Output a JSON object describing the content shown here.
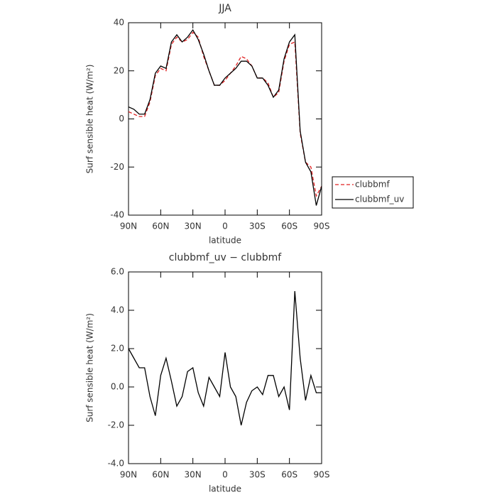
{
  "chart_data": [
    {
      "type": "line",
      "title": "JJA",
      "xlabel": "latitude",
      "ylabel": "Surf sensible heat (W/m²)",
      "x": [
        90,
        85,
        80,
        75,
        70,
        65,
        60,
        55,
        50,
        45,
        40,
        35,
        30,
        25,
        20,
        15,
        10,
        5,
        0,
        -5,
        -10,
        -15,
        -20,
        -25,
        -30,
        -35,
        -40,
        -45,
        -50,
        -55,
        -60,
        -65,
        -70,
        -75,
        -80,
        -85,
        -90
      ],
      "xlim": [
        90,
        -90
      ],
      "xticks": [
        {
          "value": 90,
          "label": "90N"
        },
        {
          "value": 60,
          "label": "60N"
        },
        {
          "value": 30,
          "label": "30N"
        },
        0,
        {
          "value": -30,
          "label": "30S"
        },
        {
          "value": -60,
          "label": "60S"
        },
        {
          "value": -90,
          "label": "90S"
        }
      ],
      "ylim": [
        -40,
        40
      ],
      "yticks": [
        -40,
        -20,
        0,
        20,
        40
      ],
      "legend": "right",
      "series": [
        {
          "name": "clubbmf",
          "color": "#e02020",
          "dash": "dashed",
          "values": [
            3,
            2,
            1,
            1,
            7,
            18,
            21,
            20,
            31,
            34,
            32,
            33,
            36,
            34,
            26,
            20,
            14,
            14,
            16,
            19,
            22,
            26,
            25,
            22,
            17,
            17,
            15,
            9,
            11,
            24,
            31,
            32,
            -6,
            -18,
            -20,
            -32,
            -28
          ]
        },
        {
          "name": "clubbmf_uv",
          "color": "#000000",
          "dash": "solid",
          "values": [
            5,
            4,
            2,
            2,
            8,
            19,
            22,
            21,
            32,
            35,
            32,
            34,
            37,
            33,
            27,
            20,
            14,
            14,
            17,
            19,
            21,
            24,
            24,
            22,
            17,
            17,
            14,
            9,
            12,
            25,
            32,
            35,
            -5,
            -18,
            -22,
            -36,
            -28
          ]
        }
      ]
    },
    {
      "type": "line",
      "title": "clubbmf_uv − clubbmf",
      "xlabel": "latitude",
      "ylabel": "Surf sensible heat (W/m²)",
      "x": [
        90,
        85,
        80,
        75,
        70,
        65,
        60,
        55,
        50,
        45,
        40,
        35,
        30,
        25,
        20,
        15,
        10,
        5,
        0,
        -5,
        -10,
        -15,
        -20,
        -25,
        -30,
        -35,
        -40,
        -45,
        -50,
        -55,
        -60,
        -65,
        -70,
        -75,
        -80,
        -85,
        -90
      ],
      "xlim": [
        90,
        -90
      ],
      "xticks": [
        {
          "value": 90,
          "label": "90N"
        },
        {
          "value": 60,
          "label": "60N"
        },
        {
          "value": 30,
          "label": "30N"
        },
        0,
        {
          "value": -30,
          "label": "30S"
        },
        {
          "value": -60,
          "label": "60S"
        },
        {
          "value": -90,
          "label": "90S"
        }
      ],
      "ylim": [
        -4,
        6
      ],
      "yticks": [
        {
          "value": -4,
          "label": "-4.0"
        },
        {
          "value": -2,
          "label": "-2.0"
        },
        {
          "value": 0,
          "label": "0.0"
        },
        {
          "value": 2,
          "label": "2.0"
        },
        {
          "value": 4,
          "label": "4.0"
        },
        {
          "value": 6,
          "label": "6.0"
        }
      ],
      "series": [
        {
          "color": "#000000",
          "dash": "solid",
          "values": [
            2.0,
            1.5,
            1.0,
            1.0,
            -0.5,
            -1.5,
            0.6,
            1.5,
            0.3,
            -1.0,
            -0.5,
            0.8,
            1.0,
            -0.3,
            -1.0,
            0.5,
            0.0,
            -0.5,
            1.8,
            0.0,
            -0.5,
            -2.0,
            -0.8,
            -0.2,
            0.0,
            -0.4,
            0.6,
            0.6,
            -0.5,
            0.0,
            -1.2,
            5.0,
            1.5,
            -0.7,
            0.6,
            -0.3,
            -0.3
          ]
        }
      ]
    }
  ]
}
